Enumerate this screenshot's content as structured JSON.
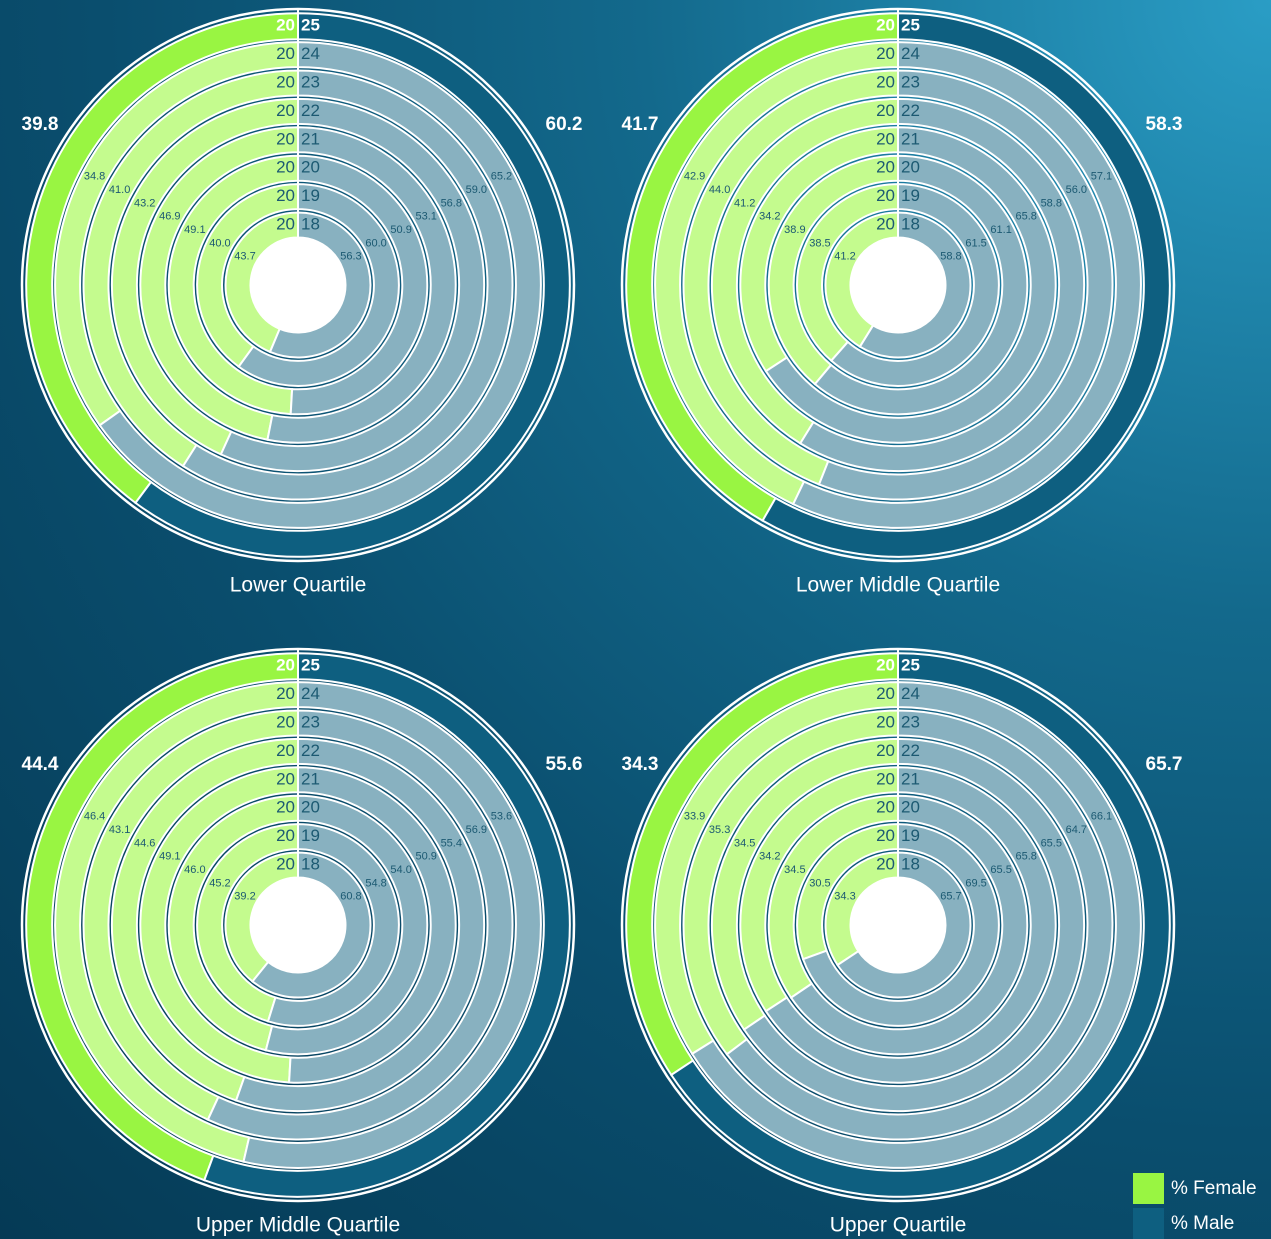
{
  "chart_data": [
    {
      "type": "radial_bar",
      "title": "Lower Quartile",
      "category_prefix": [
        "20",
        "20",
        "20",
        "20",
        "20",
        "20",
        "20",
        "20"
      ],
      "categories": [
        "18",
        "19",
        "20",
        "21",
        "22",
        "23",
        "24",
        "25"
      ],
      "series": [
        {
          "name": "% Female",
          "color": "#99f542",
          "ring_color": "#c4fb8e",
          "values": [
            43.7,
            40.0,
            49.1,
            46.9,
            43.2,
            41.0,
            34.8,
            39.8
          ],
          "value_labels": [
            "43.7",
            "40.0",
            "49.1",
            "46.9",
            "43.2",
            "41.0",
            "34.8",
            "39.8"
          ]
        },
        {
          "name": "% Male",
          "color": "#0e5f80",
          "ring_color": "#88b1c0",
          "values": [
            56.3,
            60.0,
            50.9,
            53.1,
            56.8,
            59.0,
            65.2,
            60.2
          ],
          "value_labels": [
            "56.3",
            "60.0",
            "50.9",
            "53.1",
            "56.8",
            "59.0",
            "65.2",
            "60.2"
          ]
        }
      ]
    },
    {
      "type": "radial_bar",
      "title": "Lower Middle Quartile",
      "category_prefix": [
        "20",
        "20",
        "20",
        "20",
        "20",
        "20",
        "20",
        "20"
      ],
      "categories": [
        "18",
        "19",
        "20",
        "21",
        "22",
        "23",
        "24",
        "25"
      ],
      "series": [
        {
          "name": "% Female",
          "color": "#99f542",
          "ring_color": "#c4fb8e",
          "values": [
            41.2,
            38.5,
            38.9,
            34.2,
            41.2,
            44.0,
            42.9,
            41.7
          ],
          "value_labels": [
            "41.2",
            "38.5",
            "38.9",
            "34.2",
            "41.2",
            "44.0",
            "42.9",
            "41.7"
          ]
        },
        {
          "name": "% Male",
          "color": "#0e5f80",
          "ring_color": "#88b1c0",
          "values": [
            58.8,
            61.5,
            61.1,
            65.8,
            58.8,
            56.0,
            57.1,
            58.3
          ],
          "value_labels": [
            "58.8",
            "61.5",
            "61.1",
            "65.8",
            "58.8",
            "56.0",
            "57.1",
            "58.3"
          ]
        }
      ]
    },
    {
      "type": "radial_bar",
      "title": "Upper Middle Quartile",
      "category_prefix": [
        "20",
        "20",
        "20",
        "20",
        "20",
        "20",
        "20",
        "20"
      ],
      "categories": [
        "18",
        "19",
        "20",
        "21",
        "22",
        "23",
        "24",
        "25"
      ],
      "series": [
        {
          "name": "% Female",
          "color": "#99f542",
          "ring_color": "#c4fb8e",
          "values": [
            39.2,
            45.2,
            46.0,
            49.1,
            44.6,
            43.1,
            46.4,
            44.4
          ],
          "value_labels": [
            "39.2",
            "45.2",
            "46.0",
            "49.1",
            "44.6",
            "43.1",
            "46.4",
            "44.4"
          ]
        },
        {
          "name": "% Male",
          "color": "#0e5f80",
          "ring_color": "#88b1c0",
          "values": [
            60.8,
            54.8,
            54.0,
            50.9,
            55.4,
            56.9,
            53.6,
            55.6
          ],
          "value_labels": [
            "60.8",
            "54.8",
            "54.0",
            "50.9",
            "55.4",
            "56.9",
            "53.6",
            "55.6"
          ]
        }
      ]
    },
    {
      "type": "radial_bar",
      "title": "Upper Quartile",
      "category_prefix": [
        "20",
        "20",
        "20",
        "20",
        "20",
        "20",
        "20",
        "20"
      ],
      "categories": [
        "18",
        "19",
        "20",
        "21",
        "22",
        "23",
        "24",
        "25"
      ],
      "series": [
        {
          "name": "% Female",
          "color": "#99f542",
          "ring_color": "#c4fb8e",
          "values": [
            34.3,
            30.5,
            34.5,
            34.2,
            34.5,
            35.3,
            33.9,
            34.3
          ],
          "value_labels": [
            "34.3",
            "30.5",
            "34.5",
            "34.2",
            "34.5",
            "35.3",
            "33.9",
            "34.3"
          ]
        },
        {
          "name": "% Male",
          "color": "#0e5f80",
          "ring_color": "#88b1c0",
          "values": [
            65.7,
            69.5,
            65.5,
            65.8,
            65.5,
            64.7,
            66.1,
            65.7
          ],
          "value_labels": [
            "65.7",
            "69.5",
            "65.5",
            "65.8",
            "65.5",
            "64.7",
            "66.1",
            "65.7"
          ]
        }
      ]
    }
  ]
}
